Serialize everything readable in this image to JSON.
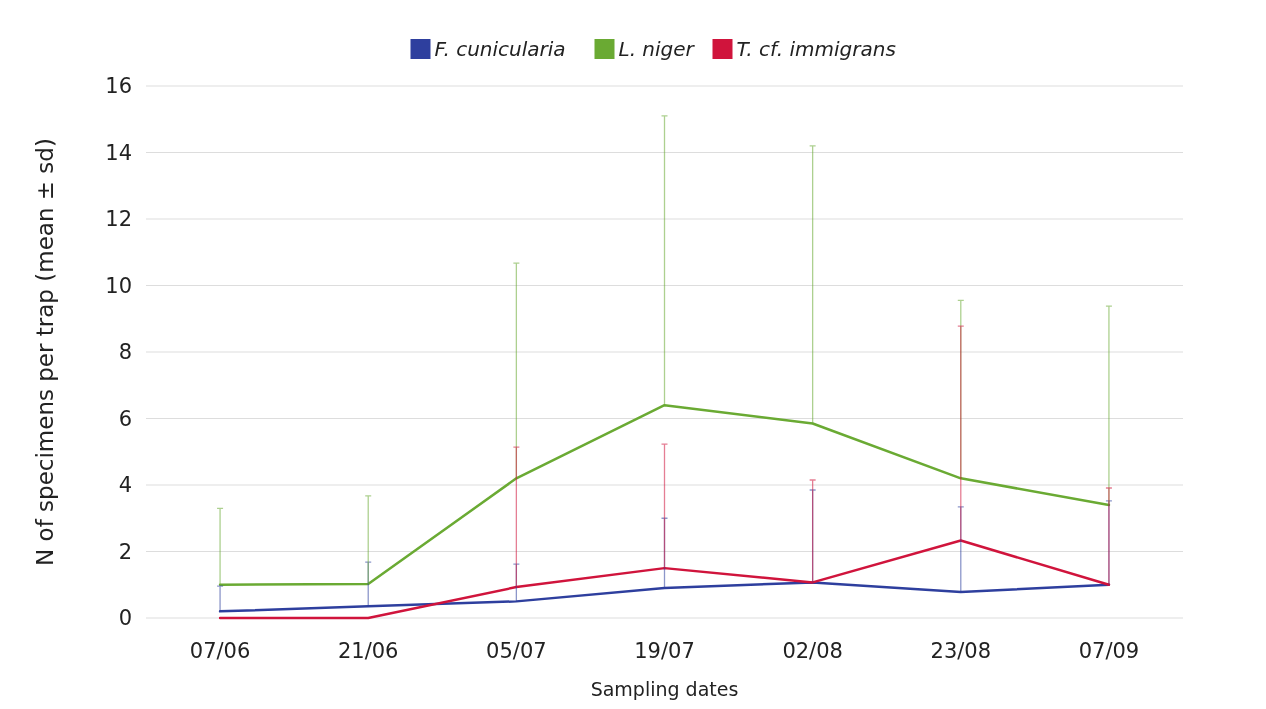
{
  "chart_data": {
    "type": "line",
    "xlabel": "Sampling dates",
    "ylabel": "N of specimens per trap (mean ± sd)",
    "categories": [
      "07/06",
      "21/06",
      "05/07",
      "19/07",
      "02/08",
      "23/08",
      "07/09"
    ],
    "series": [
      {
        "name": "F. cunicularia",
        "color": "#2e3f9e",
        "values": [
          0.2,
          0.35,
          0.5,
          0.9,
          1.07,
          0.78,
          1.0
        ],
        "errors": [
          [
            0.2,
            0.96
          ],
          [
            0.35,
            1.68
          ],
          [
            0.5,
            1.62
          ],
          [
            0.9,
            3.0
          ],
          [
            1.07,
            3.85
          ],
          [
            0.78,
            3.34
          ],
          [
            1.0,
            3.52
          ]
        ]
      },
      {
        "name": "L. niger",
        "color": "#6aaa33",
        "values": [
          1.0,
          1.02,
          4.2,
          6.4,
          5.85,
          4.2,
          3.4
        ],
        "errors": [
          [
            1.0,
            3.3
          ],
          [
            1.02,
            3.67
          ],
          [
            4.2,
            10.67
          ],
          [
            6.4,
            15.1
          ],
          [
            5.85,
            14.2
          ],
          [
            4.2,
            9.55
          ],
          [
            3.4,
            9.38
          ]
        ]
      },
      {
        "name": "T. cf. immigrans",
        "color": "#d0143c",
        "values": [
          0,
          0,
          0.93,
          1.5,
          1.07,
          2.33,
          1.0
        ],
        "errors": [
          null,
          null,
          [
            0.93,
            5.14
          ],
          [
            1.5,
            5.23
          ],
          [
            1.07,
            4.15
          ],
          [
            2.33,
            8.78
          ],
          [
            1.0,
            3.91
          ]
        ]
      }
    ],
    "ylim": [
      0,
      16
    ],
    "yticks": [
      0,
      2,
      4,
      6,
      8,
      10,
      12,
      14,
      16
    ],
    "grid": "y",
    "legend": "top",
    "marker": "none",
    "line_style": "solid"
  }
}
